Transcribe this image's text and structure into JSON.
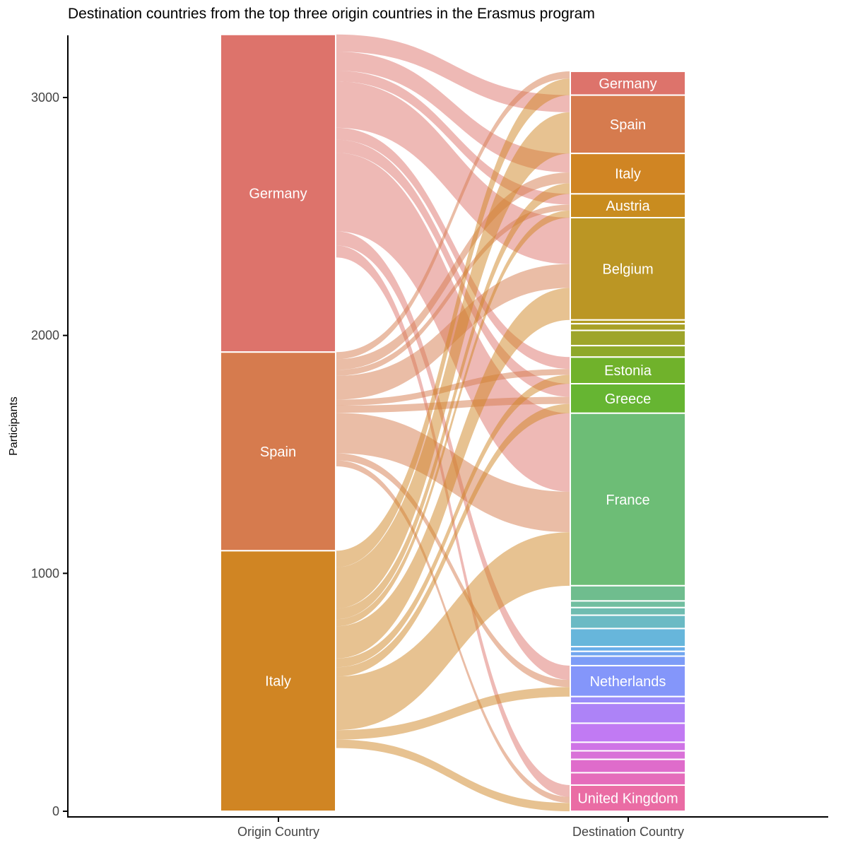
{
  "chart_data": {
    "type": "alluvial",
    "title": "Destination countries from the top three origin countries in the Erasmus program",
    "ylabel": "Participants",
    "xlabel": "",
    "ylim": [
      0,
      3250
    ],
    "y_ticks": [
      0,
      1000,
      2000,
      3000
    ],
    "axes": [
      "Origin Country",
      "Destination Country"
    ],
    "origin_strata": [
      {
        "label": "Germany",
        "value": 1335,
        "color": "#dd736b"
      },
      {
        "label": "Spain",
        "value": 835,
        "color": "#d67b4e"
      },
      {
        "label": "Italy",
        "value": 1095,
        "color": "#d08523"
      }
    ],
    "destination_strata": [
      {
        "label": "Germany",
        "value": 100,
        "color": "#dd736b"
      },
      {
        "label": "Spain",
        "value": 245,
        "color": "#d67b4e"
      },
      {
        "label": "Italy",
        "value": 170,
        "color": "#d08523"
      },
      {
        "label": "Austria",
        "value": 100,
        "color": "#c98c1f"
      },
      {
        "label": "Belgium",
        "value": 430,
        "color": "#bb9624"
      },
      {
        "label": "",
        "value": 16,
        "color": "#b29b22"
      },
      {
        "label": "",
        "value": 28,
        "color": "#a8a026"
      },
      {
        "label": "",
        "value": 64,
        "color": "#9ea52b"
      },
      {
        "label": "",
        "value": 48,
        "color": "#8ea82a"
      },
      {
        "label": "Estonia",
        "value": 112,
        "color": "#70b22b"
      },
      {
        "label": "Greece",
        "value": 124,
        "color": "#66b532"
      },
      {
        "label": "France",
        "value": 725,
        "color": "#6dbd76"
      },
      {
        "label": "",
        "value": 64,
        "color": "#6fbd8e"
      },
      {
        "label": "",
        "value": 28,
        "color": "#71bea0"
      },
      {
        "label": "",
        "value": 32,
        "color": "#6fbcb0"
      },
      {
        "label": "",
        "value": 56,
        "color": "#6bbac4"
      },
      {
        "label": "",
        "value": 76,
        "color": "#67b6db"
      },
      {
        "label": "",
        "value": 20,
        "color": "#6aaee9"
      },
      {
        "label": "",
        "value": 20,
        "color": "#72a6ef"
      },
      {
        "label": "",
        "value": 40,
        "color": "#7d9cf7"
      },
      {
        "label": "Netherlands",
        "value": 130,
        "color": "#8496fa"
      },
      {
        "label": "",
        "value": 28,
        "color": "#9a8cf9"
      },
      {
        "label": "",
        "value": 84,
        "color": "#ad83f7"
      },
      {
        "label": "",
        "value": 80,
        "color": "#c17af3"
      },
      {
        "label": "",
        "value": 36,
        "color": "#cf74e6"
      },
      {
        "label": "",
        "value": 36,
        "color": "#d971d8"
      },
      {
        "label": "",
        "value": 56,
        "color": "#df6ccb"
      },
      {
        "label": "",
        "value": 52,
        "color": "#e56cbb"
      },
      {
        "label": "United Kingdom",
        "value": 110,
        "color": "#ea6ca4"
      }
    ],
    "flows": [
      {
        "from": "Germany",
        "to": "Spain",
        "value": 72
      },
      {
        "from": "Germany",
        "to": "Italy",
        "value": 80
      },
      {
        "from": "Germany",
        "to": "Austria",
        "value": 45
      },
      {
        "from": "Germany",
        "to": "Belgium",
        "value": 195
      },
      {
        "from": "Germany",
        "to": "Estonia",
        "value": 50
      },
      {
        "from": "Germany",
        "to": "Greece",
        "value": 55
      },
      {
        "from": "Germany",
        "to": "France",
        "value": 330
      },
      {
        "from": "Germany",
        "to": "Netherlands",
        "value": 60
      },
      {
        "from": "Germany",
        "to": "United Kingdom",
        "value": 50
      },
      {
        "from": "Spain",
        "to": "Germany",
        "value": 30
      },
      {
        "from": "Spain",
        "to": "Italy",
        "value": 45
      },
      {
        "from": "Spain",
        "to": "Austria",
        "value": 25
      },
      {
        "from": "Spain",
        "to": "Belgium",
        "value": 100
      },
      {
        "from": "Spain",
        "to": "Estonia",
        "value": 25
      },
      {
        "from": "Spain",
        "to": "Greece",
        "value": 30
      },
      {
        "from": "Spain",
        "to": "France",
        "value": 170
      },
      {
        "from": "Spain",
        "to": "Netherlands",
        "value": 30
      },
      {
        "from": "Spain",
        "to": "United Kingdom",
        "value": 25
      },
      {
        "from": "Italy",
        "to": "Germany",
        "value": 70
      },
      {
        "from": "Italy",
        "to": "Spain",
        "value": 173
      },
      {
        "from": "Italy",
        "to": "Italy",
        "value": 45
      },
      {
        "from": "Italy",
        "to": "Austria",
        "value": 30
      },
      {
        "from": "Italy",
        "to": "Belgium",
        "value": 135
      },
      {
        "from": "Italy",
        "to": "Estonia",
        "value": 37
      },
      {
        "from": "Italy",
        "to": "Greece",
        "value": 39
      },
      {
        "from": "Italy",
        "to": "France",
        "value": 225
      },
      {
        "from": "Italy",
        "to": "Netherlands",
        "value": 40
      },
      {
        "from": "Italy",
        "to": "United Kingdom",
        "value": 35
      }
    ]
  }
}
